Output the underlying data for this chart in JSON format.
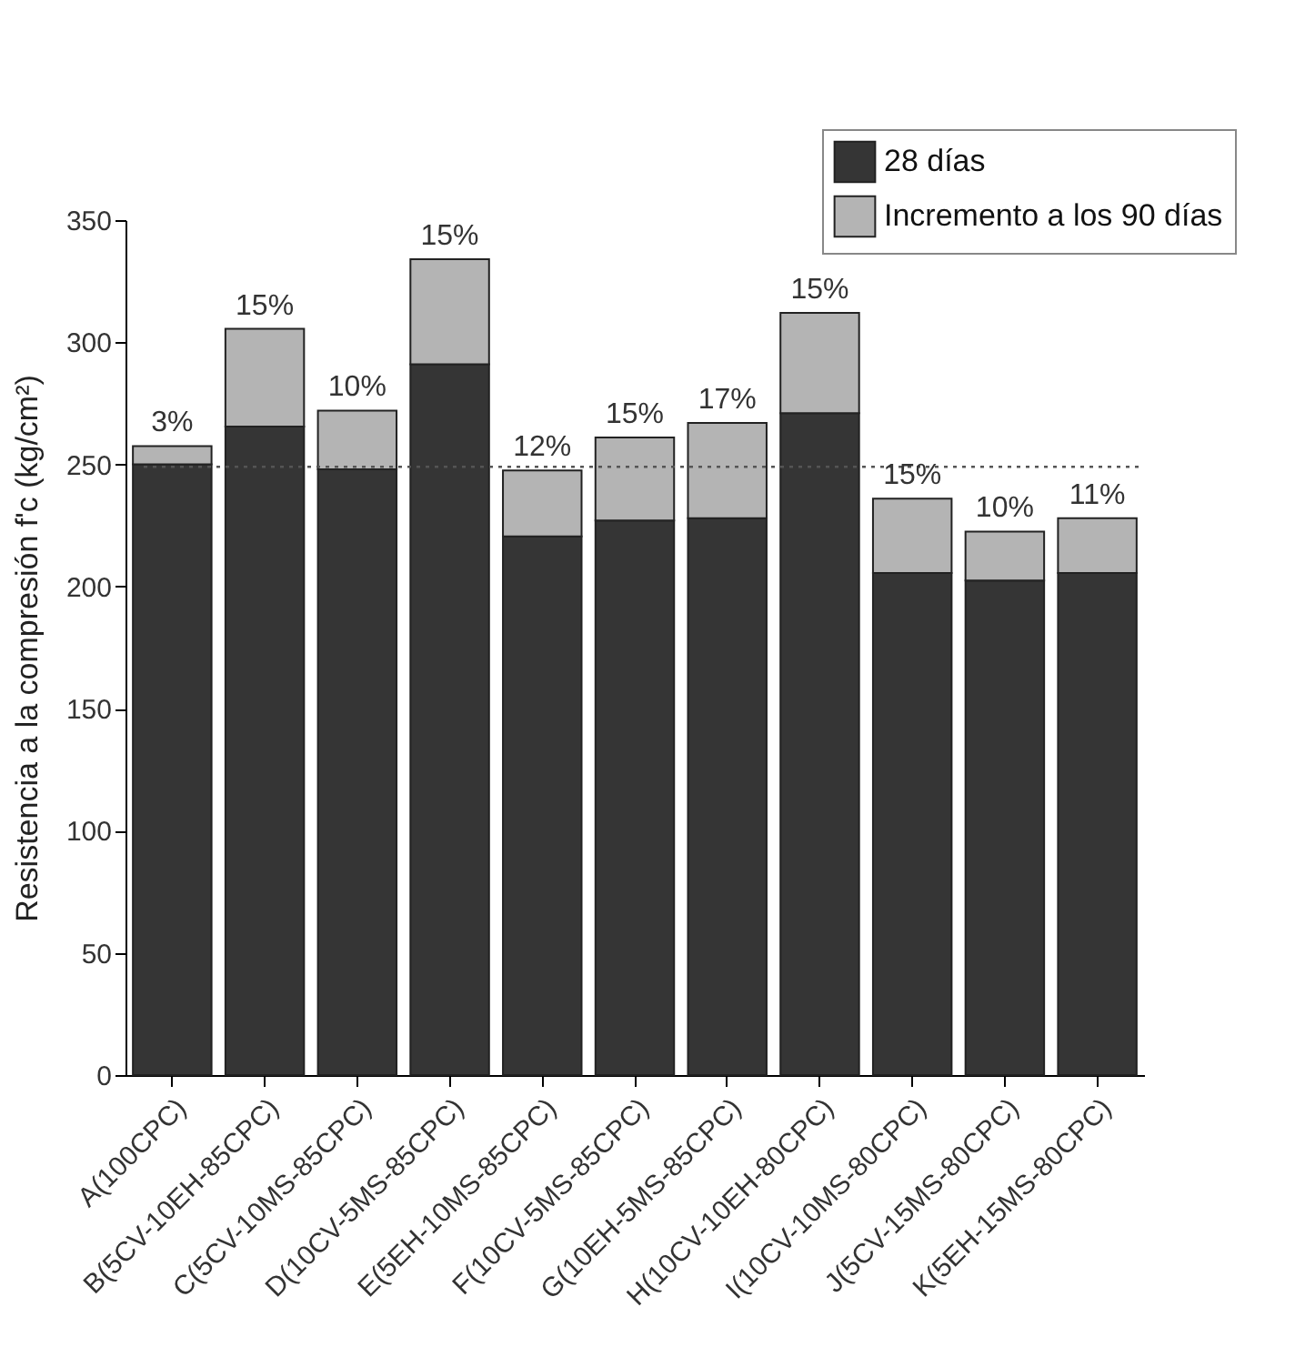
{
  "chart_data": {
    "type": "bar",
    "stacked": true,
    "ylabel": "Resistencia a la compresión f'c (kg/cm²)",
    "categories": [
      "A(100CPC)",
      "B(5CV-10EH-85CPC)",
      "C(5CV-10MS-85CPC)",
      "D(10CV-5MS-85CPC)",
      "E(5EH-10MS-85CPC)",
      "F(10CV-5MS-85CPC)",
      "G(10EH-5MS-85CPC)",
      "H(10CV-10EH-80CPC)",
      "I(10CV-10MS-80CPC)",
      "J(5CV-15MS-80CPC)",
      "K(5EH-15MS-80CPC)"
    ],
    "series": [
      {
        "name": "28 días",
        "color": "#353535",
        "values": [
          250,
          265.5,
          248,
          291,
          220.5,
          227,
          228,
          271,
          205.5,
          202.5,
          205.5
        ]
      },
      {
        "name": "Incremento a los 90 días",
        "color": "#b4b4b4",
        "values": [
          7.5,
          40,
          24,
          43,
          27,
          34,
          39,
          41,
          30.5,
          20,
          22.5
        ]
      }
    ],
    "annotations": [
      {
        "text": "3%",
        "x": "A(100CPC)",
        "y": 257.5
      },
      {
        "text": "15%",
        "x": "B(5CV-10EH-85CPC)",
        "y": 305.5
      },
      {
        "text": "10%",
        "x": "C(5CV-10MS-85CPC)",
        "y": 272
      },
      {
        "text": "15%",
        "x": "D(10CV-5MS-85CPC)",
        "y": 334
      },
      {
        "text": "12%",
        "x": "E(5EH-10MS-85CPC)",
        "y": 247.5
      },
      {
        "text": "15%",
        "x": "F(10CV-5MS-85CPC)",
        "y": 261
      },
      {
        "text": "17%",
        "x": "G(10EH-5MS-85CPC)",
        "y": 267
      },
      {
        "text": "15%",
        "x": "H(10CV-10EH-80CPC)",
        "y": 312
      },
      {
        "text": "15%",
        "x": "I(10CV-10MS-80CPC)",
        "y": 236
      },
      {
        "text": "10%",
        "x": "J(5CV-15MS-80CPC)",
        "y": 222.5
      },
      {
        "text": "11%",
        "x": "K(5EH-15MS-80CPC)",
        "y": 228
      }
    ],
    "ylim": [
      0,
      350
    ],
    "yticks": [
      0,
      50,
      100,
      150,
      200,
      250,
      300,
      350
    ],
    "grid": false,
    "legend": "top right",
    "ref_lines": [
      {
        "axis": "y",
        "value": 249,
        "color": "#555555",
        "line_style": "dotted"
      }
    ]
  }
}
